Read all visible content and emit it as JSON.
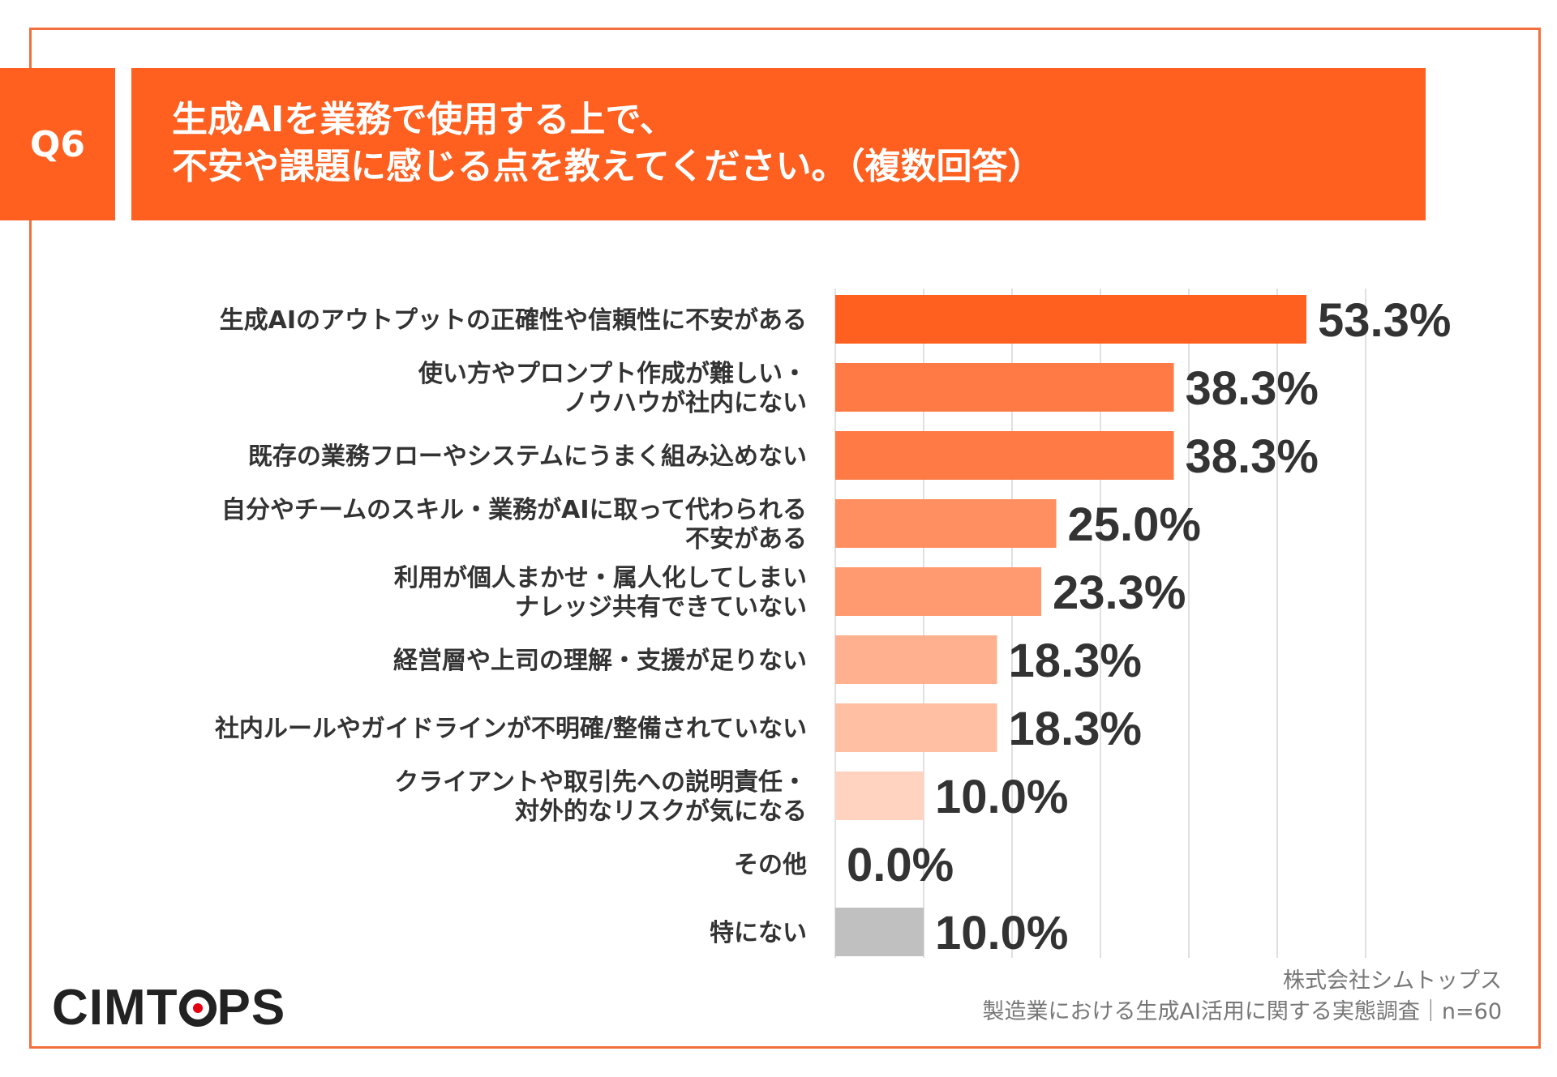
{
  "question_label": "Q6",
  "title_lines": [
    "生成AIを業務で使用する上で、",
    "不安や課題に感じる点を教えてください。（複数回答）"
  ],
  "chart_data": {
    "type": "bar",
    "orientation": "horizontal",
    "categories": [
      [
        "生成AIのアウトプットの正確性や信頼性に不安がある"
      ],
      [
        "使い方やプロンプト作成が難しい・",
        "ノウハウが社内にない"
      ],
      [
        "既存の業務フローやシステムにうまく組み込めない"
      ],
      [
        "自分やチームのスキル・業務がAIに取って代わられる",
        "不安がある"
      ],
      [
        "利用が個人まかせ・属人化してしまい",
        "ナレッジ共有できていない"
      ],
      [
        "経営層や上司の理解・支援が足りない"
      ],
      [
        "社内ルールやガイドラインが不明確/整備されていない"
      ],
      [
        "クライアントや取引先への説明責任・",
        "対外的なリスクが気になる"
      ],
      [
        "その他"
      ],
      [
        "特にない"
      ]
    ],
    "values": [
      53.3,
      38.3,
      38.3,
      25.0,
      23.3,
      18.3,
      18.3,
      10.0,
      0.0,
      10.0
    ],
    "value_labels": [
      "53.3%",
      "38.3%",
      "38.3%",
      "25.0%",
      "23.3%",
      "18.3%",
      "18.3%",
      "10.0%",
      "0.0%",
      "10.0%"
    ],
    "bar_colors": [
      "#ff5f1f",
      "#ff7a45",
      "#ff7a45",
      "#ff8f60",
      "#ff9a70",
      "#ffb08f",
      "#ffbfa3",
      "#ffd3c0",
      "#ffd3c0",
      "#c0c0c0"
    ],
    "xlim": [
      0,
      60
    ],
    "gridlines": [
      0,
      10,
      20,
      30,
      40,
      50,
      60
    ],
    "grid": true,
    "unit": "%"
  },
  "company_logo": {
    "part1": "CIMT",
    "part2": "PS"
  },
  "source_lines": [
    "株式会社シムトップス",
    "製造業における生成AI活用に関する実態調査｜n=60"
  ]
}
